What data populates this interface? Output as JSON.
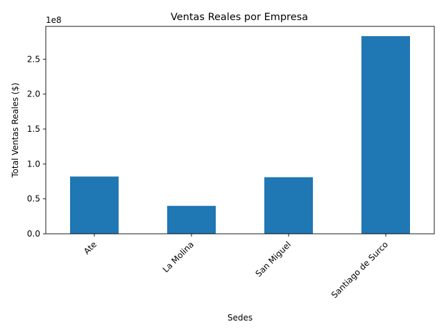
{
  "chart_data": {
    "type": "bar",
    "title": "Ventas Reales por Empresa",
    "xlabel": "Sedes",
    "ylabel": "Total Ventas Reales ($)",
    "y_scale_label": "1e8",
    "y_scale_factor": 100000000,
    "categories": [
      "Ate",
      "La Molina",
      "San Miguel",
      "Santiago de Surco"
    ],
    "values": [
      82000000,
      40000000,
      81000000,
      283000000
    ],
    "ylim": [
      0,
      297000000
    ],
    "yticks": [
      0,
      50000000,
      100000000,
      150000000,
      200000000,
      250000000
    ],
    "ytick_labels": [
      "0.0",
      "0.5",
      "1.0",
      "1.5",
      "2.0",
      "2.5"
    ],
    "bar_color": "#1f77b4",
    "grid": false,
    "legend": "none"
  }
}
